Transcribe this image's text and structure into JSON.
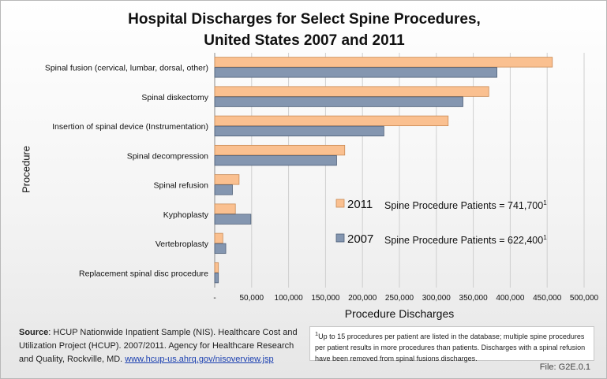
{
  "title_line1": "Hospital  Discharges  for Select Spine Procedures,",
  "title_line2": "United States 2007 and 2011",
  "chart_data": {
    "type": "bar",
    "orientation": "horizontal",
    "ylabel": "Procedure",
    "xlabel": "Procedure Discharges",
    "xlim": [
      0,
      500000
    ],
    "x_ticks": [
      "-",
      "50,000",
      "100,000",
      "150,000",
      "200,000",
      "250,000",
      "300,000",
      "350,000",
      "400,000",
      "450,000",
      "500,000"
    ],
    "categories": [
      "Spinal fusion (cervical, lumbar, dorsal, other)",
      "Spinal diskectomy",
      "Insertion of spinal device (Instrumentation)",
      "Spinal decompression",
      "Spinal refusion",
      "Kyphoplasty",
      "Vertebroplasty",
      "Replacement spinal disc procedure"
    ],
    "series": [
      {
        "name": "2011",
        "color": "#fac090",
        "values": [
          457000,
          371000,
          316000,
          176000,
          33000,
          28000,
          11000,
          5000
        ]
      },
      {
        "name": "2007",
        "color": "#8496b0",
        "values": [
          382000,
          336000,
          229000,
          165000,
          24000,
          49000,
          15000,
          5000
        ]
      }
    ],
    "grid": "vertical"
  },
  "legend": [
    {
      "label": "2011",
      "note_prefix": "Spine Procedure Patients = 741,700",
      "note_sup": "1",
      "color": "#fac090"
    },
    {
      "label": "2007",
      "note_prefix": "Spine Procedure Patients = 622,400",
      "note_sup": "1",
      "color": "#8496b0"
    }
  ],
  "source": {
    "label": "Source",
    "text": ":  HCUP Nationwide Inpatient Sample (NIS). Healthcare Cost and Utilization Project (HCUP). 2007/2011. Agency for Healthcare Research and Quality, Rockville, MD. ",
    "link": "www.hcup-us.ahrq.gov/nisoverview.jsp"
  },
  "footnote": {
    "sup": "1",
    "text": "Up to 15 procedures per patient are listed in the database; multiple spine procedures per patient results in more procedures than patients. Discharges with a spinal refusion have been removed from spinal fusions discharges."
  },
  "file_id": "File: G2E.0.1"
}
